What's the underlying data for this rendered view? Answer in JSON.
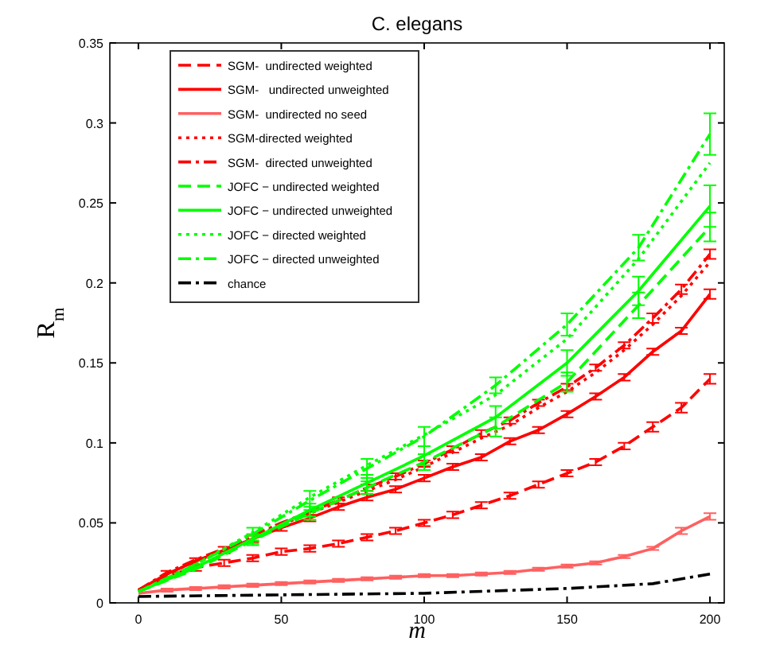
{
  "chart_data": {
    "type": "line",
    "title": "C. elegans",
    "xlabel": "m",
    "ylabel": "R$_{m}$",
    "xlim": [
      -10,
      205
    ],
    "xticks": [
      0,
      50,
      100,
      150,
      200
    ],
    "ylim": [
      0,
      0.35
    ],
    "yticks": [
      0,
      0.05,
      0.1,
      0.15,
      0.2,
      0.25,
      0.3,
      0.35
    ],
    "x": [
      0,
      10,
      20,
      30,
      40,
      50,
      60,
      70,
      80,
      90,
      100,
      110,
      120,
      130,
      140,
      150,
      160,
      170,
      180,
      190,
      200
    ],
    "grid": false,
    "legend": "top left",
    "series": [
      {
        "name": "SGM-  undirected weighted",
        "color": "#ff0000",
        "line_style": "dashed",
        "values": [
          0.007,
          0.017,
          0.022,
          0.025,
          0.028,
          0.032,
          0.034,
          0.037,
          0.041,
          0.045,
          0.05,
          0.055,
          0.061,
          0.067,
          0.074,
          0.081,
          0.088,
          0.098,
          0.11,
          0.122,
          0.14
        ],
        "errors": [
          null,
          null,
          0.002,
          0.002,
          0.002,
          0.002,
          0.002,
          0.002,
          0.002,
          0.002,
          0.002,
          0.002,
          0.002,
          0.002,
          0.002,
          0.002,
          0.002,
          0.002,
          0.003,
          0.003,
          0.003
        ]
      },
      {
        "name": "SGM-   undirected unweighted",
        "color": "#ff0000",
        "line_style": "solid",
        "values": [
          0.008,
          0.018,
          0.026,
          0.033,
          0.04,
          0.047,
          0.053,
          0.06,
          0.066,
          0.071,
          0.078,
          0.085,
          0.091,
          0.101,
          0.108,
          0.118,
          0.129,
          0.141,
          0.157,
          0.17,
          0.193
        ],
        "errors": [
          null,
          0.002,
          0.002,
          0.002,
          0.002,
          0.002,
          0.002,
          0.002,
          0.002,
          0.002,
          0.002,
          0.002,
          0.002,
          0.002,
          0.002,
          0.002,
          0.002,
          0.002,
          0.002,
          0.002,
          0.003
        ]
      },
      {
        "name": "SGM-  undirected no seed",
        "color": "#ff6060",
        "line_style": "solid",
        "values": [
          0.006,
          0.008,
          0.009,
          0.01,
          0.011,
          0.012,
          0.013,
          0.014,
          0.015,
          0.016,
          0.017,
          0.017,
          0.018,
          0.019,
          0.021,
          0.023,
          0.025,
          0.029,
          0.034,
          0.045,
          0.054
        ],
        "errors": [
          null,
          0.001,
          0.001,
          0.001,
          0.001,
          0.001,
          0.001,
          0.001,
          0.001,
          0.001,
          0.001,
          0.001,
          0.001,
          0.001,
          0.001,
          0.001,
          0.001,
          0.001,
          0.001,
          0.002,
          0.002
        ]
      },
      {
        "name": "SGM-directed weighted",
        "color": "#ff0000",
        "line_style": "dotted",
        "values": [
          0.008,
          0.018,
          0.026,
          0.033,
          0.041,
          0.049,
          0.056,
          0.063,
          0.07,
          0.077,
          0.085,
          0.094,
          0.103,
          0.111,
          0.122,
          0.132,
          0.144,
          0.158,
          0.174,
          0.192,
          0.213
        ]
      },
      {
        "name": "SGM-  directed unweighted",
        "color": "#ff0000",
        "line_style": "dashdot",
        "values": [
          0.008,
          0.019,
          0.027,
          0.034,
          0.042,
          0.05,
          0.057,
          0.064,
          0.072,
          0.079,
          0.087,
          0.096,
          0.106,
          0.114,
          0.125,
          0.135,
          0.147,
          0.161,
          0.178,
          0.196,
          0.218
        ],
        "errors": [
          null,
          null,
          null,
          null,
          null,
          null,
          null,
          0.002,
          0.002,
          0.002,
          0.002,
          0.002,
          0.002,
          0.002,
          0.002,
          0.002,
          0.002,
          0.002,
          0.003,
          0.003,
          0.003
        ]
      },
      {
        "name": "JOFC − undirected weighted",
        "color": "#00ff00",
        "line_style": "dashed",
        "x": [
          0,
          20,
          40,
          60,
          80,
          100,
          125,
          150,
          175,
          200
        ],
        "values": [
          0.007,
          0.021,
          0.039,
          0.056,
          0.072,
          0.088,
          0.11,
          0.138,
          0.186,
          0.235
        ],
        "errors": [
          null,
          null,
          0.003,
          0.004,
          0.004,
          0.005,
          0.006,
          0.006,
          0.008,
          0.009
        ]
      },
      {
        "name": "JOFC − undirected unweighted",
        "color": "#00ff00",
        "line_style": "solid",
        "x": [
          0,
          20,
          40,
          60,
          80,
          100,
          125,
          150,
          175,
          200
        ],
        "values": [
          0.007,
          0.022,
          0.04,
          0.058,
          0.075,
          0.092,
          0.116,
          0.15,
          0.195,
          0.248
        ],
        "errors": [
          null,
          null,
          0.003,
          0.004,
          0.005,
          0.006,
          0.007,
          0.008,
          0.009,
          0.013
        ]
      },
      {
        "name": "JOFC − directed weighted",
        "color": "#00ff00",
        "line_style": "dotted",
        "x": [
          0,
          20,
          40,
          60,
          80,
          100,
          125,
          150,
          175,
          200
        ],
        "values": [
          0.007,
          0.024,
          0.044,
          0.066,
          0.086,
          0.105,
          0.13,
          0.165,
          0.215,
          0.275
        ]
      },
      {
        "name": "JOFC − directed unweighted",
        "color": "#00ff00",
        "line_style": "dashdot",
        "x": [
          0,
          20,
          40,
          60,
          80,
          100,
          125,
          150,
          175,
          200
        ],
        "values": [
          0.007,
          0.024,
          0.043,
          0.064,
          0.084,
          0.104,
          0.136,
          0.174,
          0.222,
          0.293
        ],
        "errors": [
          null,
          null,
          0.004,
          0.006,
          0.006,
          0.006,
          0.005,
          0.007,
          0.008,
          0.013
        ]
      },
      {
        "name": "chance",
        "color": "#000000",
        "line_style": "dashdot",
        "x": [
          0,
          50,
          100,
          150,
          180,
          200
        ],
        "values": [
          0.004,
          0.005,
          0.006,
          0.009,
          0.012,
          0.018
        ]
      }
    ]
  }
}
